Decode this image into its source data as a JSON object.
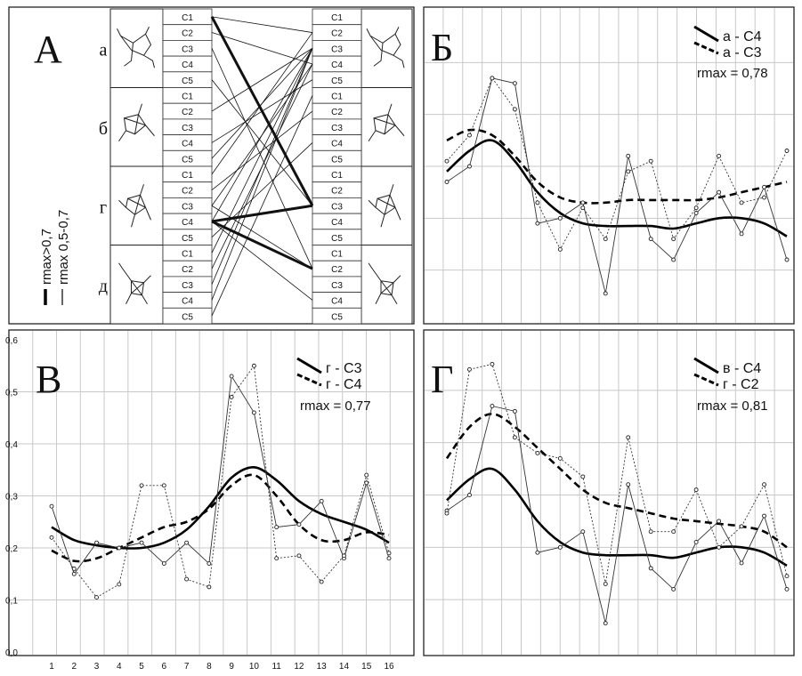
{
  "panel_a": {
    "letter": "А",
    "rows": [
      {
        "label": "а"
      },
      {
        "label": "б"
      },
      {
        "label": "г"
      },
      {
        "label": "д"
      }
    ],
    "cells": [
      "C1",
      "C2",
      "C3",
      "C4",
      "C5"
    ],
    "legend": {
      "strong": "rmax>0,7",
      "weak": "rmax 0,5-0,7"
    },
    "connections": [
      {
        "from": 0,
        "to": 12,
        "strength": "strong"
      },
      {
        "from": 0,
        "to": 1,
        "strength": "weak"
      },
      {
        "from": 1,
        "to": 3,
        "strength": "weak"
      },
      {
        "from": 2,
        "to": 16,
        "strength": "weak"
      },
      {
        "from": 4,
        "to": 12,
        "strength": "weak"
      },
      {
        "from": 6,
        "to": 2,
        "strength": "weak"
      },
      {
        "from": 8,
        "to": 4,
        "strength": "weak"
      },
      {
        "from": 9,
        "to": 2,
        "strength": "weak"
      },
      {
        "from": 10,
        "to": 1,
        "strength": "weak"
      },
      {
        "from": 11,
        "to": 6,
        "strength": "weak"
      },
      {
        "from": 12,
        "to": 3,
        "strength": "weak"
      },
      {
        "from": 12,
        "to": 16,
        "strength": "weak"
      },
      {
        "from": 13,
        "to": 2,
        "strength": "weak"
      },
      {
        "from": 13,
        "to": 12,
        "strength": "strong"
      },
      {
        "from": 13,
        "to": 16,
        "strength": "strong"
      },
      {
        "from": 13,
        "to": 18,
        "strength": "weak"
      },
      {
        "from": 14,
        "to": 8,
        "strength": "weak"
      },
      {
        "from": 15,
        "to": 2,
        "strength": "weak"
      },
      {
        "from": 16,
        "to": 3,
        "strength": "weak"
      },
      {
        "from": 17,
        "to": 2,
        "strength": "weak"
      },
      {
        "from": 18,
        "to": 2,
        "strength": "weak"
      },
      {
        "from": 19,
        "to": 5,
        "strength": "weak"
      }
    ]
  },
  "chart_data": [
    {
      "panel": "Б",
      "type": "line",
      "x": [
        1,
        2,
        3,
        4,
        5,
        6,
        7,
        8,
        9,
        10,
        11,
        12,
        13,
        14,
        15,
        16
      ],
      "ylim": [
        0,
        0.6
      ],
      "ticks_shown": false,
      "rmax": "rmax = 0,78",
      "series": [
        {
          "name": "а - С4",
          "style": "solid",
          "values": [
            0.27,
            0.3,
            0.47,
            0.46,
            0.19,
            0.2,
            0.23,
            0.055,
            0.32,
            0.16,
            0.12,
            0.21,
            0.25,
            0.17,
            0.26,
            0.12
          ]
        },
        {
          "name": "а - С3",
          "style": "dotted",
          "values": [
            0.31,
            0.36,
            0.47,
            0.41,
            0.23,
            0.14,
            0.22,
            0.16,
            0.29,
            0.31,
            0.16,
            0.22,
            0.32,
            0.23,
            0.24,
            0.33
          ]
        }
      ],
      "trends": [
        {
          "style": "solid",
          "values": [
            0.29,
            0.33,
            0.35,
            0.31,
            0.25,
            0.21,
            0.19,
            0.185,
            0.185,
            0.185,
            0.18,
            0.19,
            0.2,
            0.2,
            0.19,
            0.165
          ]
        },
        {
          "style": "dashed",
          "values": [
            0.35,
            0.37,
            0.36,
            0.32,
            0.27,
            0.24,
            0.23,
            0.23,
            0.235,
            0.235,
            0.235,
            0.235,
            0.24,
            0.25,
            0.26,
            0.27
          ]
        }
      ]
    },
    {
      "panel": "В",
      "type": "line",
      "x": [
        1,
        2,
        3,
        4,
        5,
        6,
        7,
        8,
        9,
        10,
        11,
        12,
        13,
        14,
        15,
        16
      ],
      "ylim": [
        0,
        0.6
      ],
      "yticks": [
        "0,0",
        "0,1",
        "0,2",
        "0,3",
        "0,4",
        "0,5",
        "0,6"
      ],
      "xticks": [
        "1",
        "2",
        "3",
        "4",
        "5",
        "6",
        "7",
        "8",
        "9",
        "10",
        "11",
        "12",
        "13",
        "14",
        "15",
        "16"
      ],
      "rmax": "rmax = 0,77",
      "series": [
        {
          "name": "г - С3",
          "style": "solid",
          "values": [
            0.28,
            0.15,
            0.21,
            0.2,
            0.21,
            0.17,
            0.21,
            0.17,
            0.53,
            0.46,
            0.24,
            0.245,
            0.29,
            0.18,
            0.325,
            0.18
          ]
        },
        {
          "name": "г - С4",
          "style": "dotted",
          "values": [
            0.22,
            0.16,
            0.105,
            0.13,
            0.32,
            0.32,
            0.14,
            0.125,
            0.49,
            0.55,
            0.18,
            0.185,
            0.135,
            0.185,
            0.34,
            0.19
          ]
        }
      ],
      "trends": [
        {
          "style": "solid",
          "values": [
            0.24,
            0.215,
            0.205,
            0.2,
            0.2,
            0.21,
            0.235,
            0.28,
            0.335,
            0.355,
            0.33,
            0.29,
            0.265,
            0.25,
            0.235,
            0.21
          ]
        },
        {
          "style": "dashed",
          "values": [
            0.195,
            0.175,
            0.18,
            0.2,
            0.22,
            0.24,
            0.25,
            0.275,
            0.32,
            0.34,
            0.3,
            0.245,
            0.215,
            0.215,
            0.23,
            0.225
          ]
        }
      ]
    },
    {
      "panel": "Г",
      "type": "line",
      "x": [
        1,
        2,
        3,
        4,
        5,
        6,
        7,
        8,
        9,
        10,
        11,
        12,
        13,
        14,
        15,
        16
      ],
      "ylim": [
        0,
        0.6
      ],
      "ticks_shown": false,
      "rmax": "rmax = 0,81",
      "series": [
        {
          "name": "в - С4",
          "style": "solid",
          "values": [
            0.27,
            0.3,
            0.47,
            0.46,
            0.19,
            0.2,
            0.23,
            0.055,
            0.32,
            0.16,
            0.12,
            0.21,
            0.25,
            0.17,
            0.26,
            0.12
          ]
        },
        {
          "name": "г - С2",
          "style": "dotted",
          "values": [
            0.265,
            0.54,
            0.55,
            0.41,
            0.38,
            0.37,
            0.335,
            0.13,
            0.41,
            0.23,
            0.23,
            0.31,
            0.2,
            0.24,
            0.32,
            0.145
          ]
        }
      ],
      "trends": [
        {
          "style": "solid",
          "values": [
            0.29,
            0.33,
            0.35,
            0.31,
            0.25,
            0.21,
            0.19,
            0.185,
            0.185,
            0.185,
            0.18,
            0.19,
            0.2,
            0.2,
            0.19,
            0.165
          ]
        },
        {
          "style": "dashed",
          "values": [
            0.37,
            0.43,
            0.455,
            0.43,
            0.39,
            0.35,
            0.31,
            0.285,
            0.275,
            0.265,
            0.255,
            0.25,
            0.245,
            0.24,
            0.23,
            0.2
          ]
        }
      ]
    }
  ]
}
